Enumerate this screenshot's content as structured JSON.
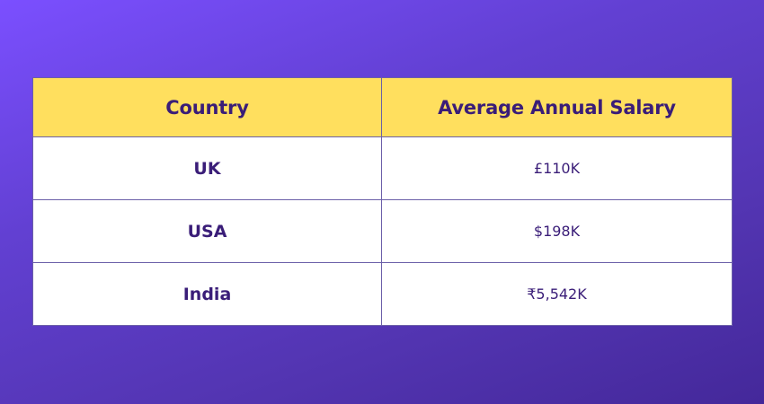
{
  "table": {
    "headers": {
      "country": "Country",
      "salary": "Average Annual Salary"
    },
    "rows": [
      {
        "country": "UK",
        "salary": "£110K"
      },
      {
        "country": "USA",
        "salary": "$198K"
      },
      {
        "country": "India",
        "salary": "₹5,542K"
      }
    ]
  },
  "colors": {
    "header_background": "#ffdf5e",
    "text": "#3a1d78",
    "page_gradient_start": "#7b4fff",
    "page_gradient_end": "#44289a"
  }
}
